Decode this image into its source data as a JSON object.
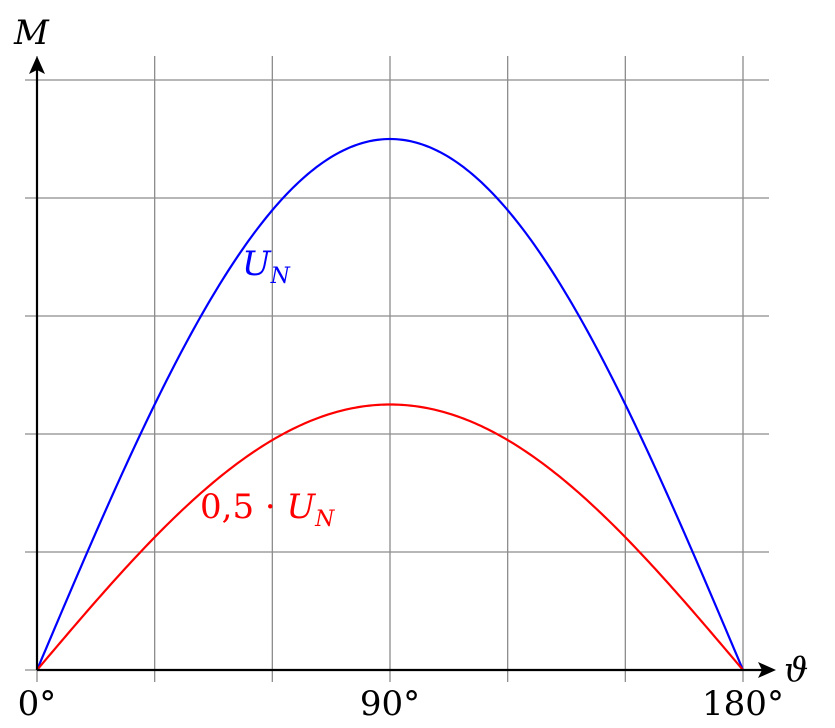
{
  "chart_data": {
    "type": "line",
    "x_label": "ϑ",
    "y_label": "M",
    "x_ticks": [
      {
        "value": 0,
        "label": "0°"
      },
      {
        "value": 90,
        "label": "90°"
      },
      {
        "value": 180,
        "label": "180°"
      }
    ],
    "x_range": [
      0,
      180
    ],
    "y_range": [
      0,
      5
    ],
    "grid": true,
    "x_grid_values": [
      0,
      30,
      60,
      90,
      120,
      150,
      180
    ],
    "y_grid_values": [
      0,
      1,
      2,
      3,
      4,
      5
    ],
    "series": [
      {
        "name": "U_N",
        "color": "#0000ff",
        "label_parts": {
          "main": "U",
          "sub": "N"
        },
        "function": "sin",
        "amplitude": 4.5,
        "x_range": [
          0,
          180
        ]
      },
      {
        "name": "0,5 · U_N",
        "color": "#ff0000",
        "label_parts": {
          "prefix": "0,5 · ",
          "main": "U",
          "sub": "N"
        },
        "function": "sin",
        "amplitude": 2.25,
        "x_range": [
          0,
          180
        ]
      }
    ]
  }
}
